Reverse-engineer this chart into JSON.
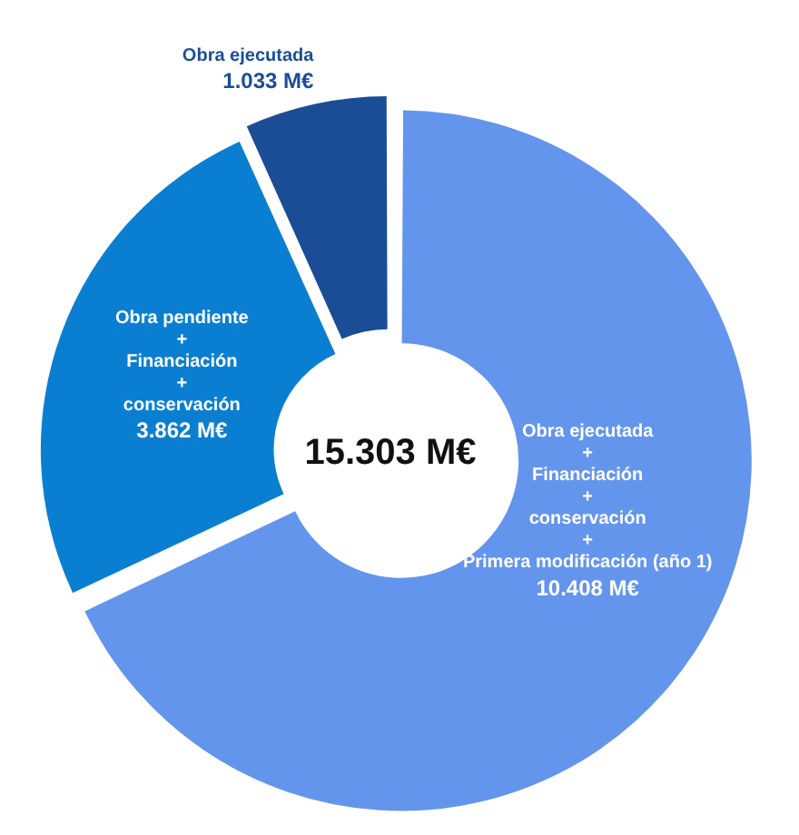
{
  "chart_data": {
    "type": "donut",
    "categories": [
      "Obra ejecutada\n+\nFinanciación\n+\nconservación\n+\nPrimera modificación (año 1)",
      "Obra pendiente\n+\nFinanciación\n+\nconservación",
      "Obra ejecutada"
    ],
    "values": [
      10.408,
      3.862,
      1.033
    ],
    "colors": [
      "#6495ed",
      "#0a7fd1",
      "#1b4d96"
    ],
    "value_labels": [
      "10.408 M€",
      "3.862 M€",
      "1.033 M€"
    ],
    "annotations": [
      "15.303 M€"
    ]
  }
}
